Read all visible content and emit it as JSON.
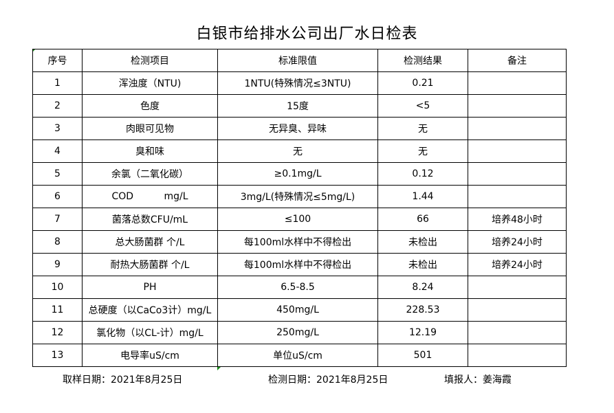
{
  "title": "白银市给排水公司出厂水日检表",
  "headers": [
    "序号",
    "检测项目",
    "标准限值",
    "检测结果",
    "备注"
  ],
  "rows": [
    [
      "1",
      "浑浊度（NTU)",
      "1NTU(特殊情况≤3NTU)",
      "0.21",
      ""
    ],
    [
      "2",
      "色度",
      "15度",
      "<5",
      ""
    ],
    [
      "3",
      "肉眼可见物",
      "无异臭、异味",
      "无",
      ""
    ],
    [
      "4",
      "臭和味",
      "无",
      "无",
      ""
    ],
    [
      "5",
      "余氯（二氧化碳）",
      "≥0.1mg/L",
      "0.12",
      ""
    ],
    [
      "6",
      "COD          mg/L",
      "3mg/L(特殊情况≤5mg/L)",
      "1.44",
      ""
    ],
    [
      "7",
      "菌落总数CFU/mL",
      "≤100",
      "66",
      "培养48小时"
    ],
    [
      "8",
      "总大肠菌群 个/L",
      "每100ml水样中不得检出",
      "未检出",
      "培养24小时"
    ],
    [
      "9",
      "耐热大肠菌群 个/L",
      "每100ml水样中不得检出",
      "未检出",
      "培养24小时"
    ],
    [
      "10",
      "PH",
      "6.5-8.5",
      "8.24",
      ""
    ],
    [
      "11",
      "总硬度（以CaCo3计）mg/L",
      "450mg/L",
      "228.53",
      ""
    ],
    [
      "12",
      "氯化物（以CL-计）mg/L",
      "250mg/L",
      "12.19",
      ""
    ],
    [
      "13",
      "电导率uS/cm",
      "单位uS/cm",
      "501",
      ""
    ]
  ],
  "footer": {
    "sample_date": "取样日期：2021年8月25日",
    "test_date": "检测日期：2021年8月25日",
    "reporter": "填报人：姜海霞"
  }
}
